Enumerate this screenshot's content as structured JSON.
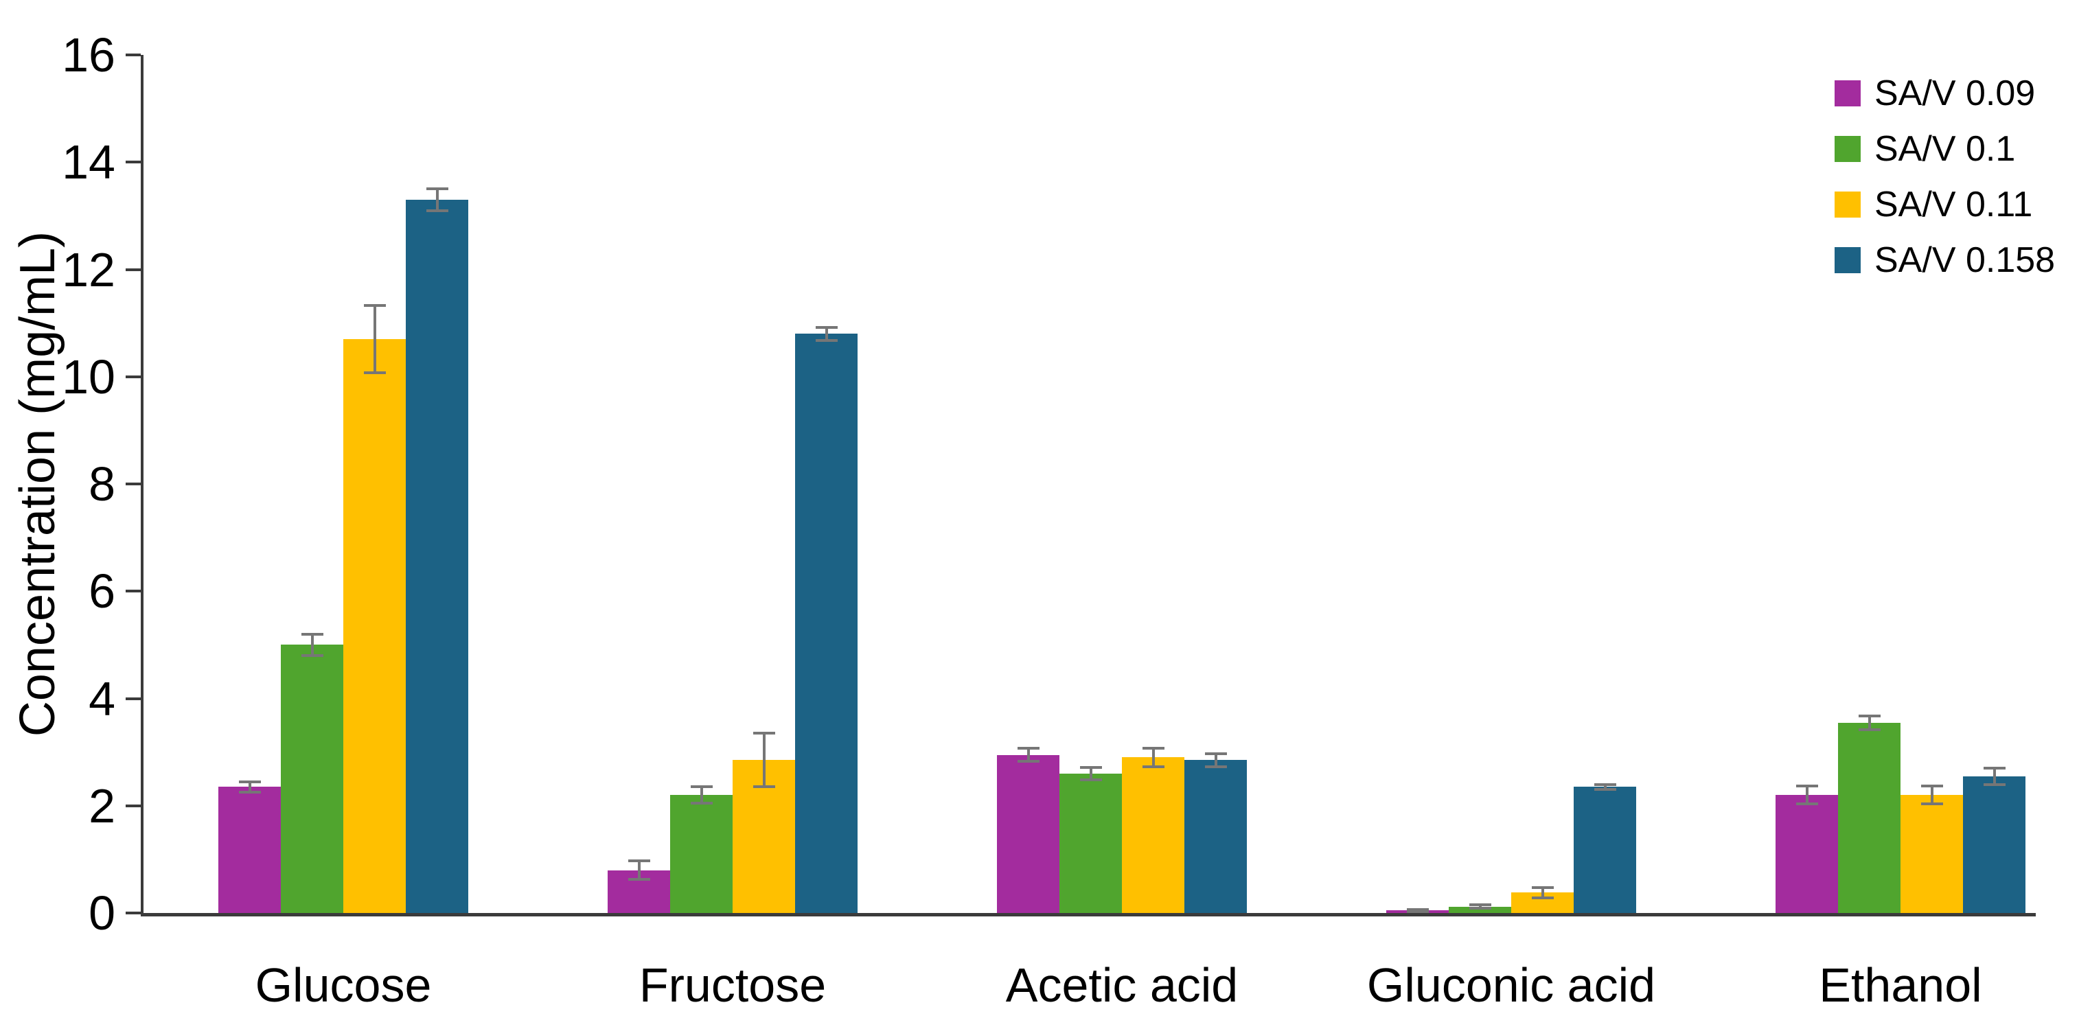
{
  "chart_data": {
    "type": "bar",
    "title": "",
    "xlabel": "",
    "ylabel": "Concentration (mg/mL)",
    "ylim": [
      0,
      16
    ],
    "yticks": [
      0,
      2,
      4,
      6,
      8,
      10,
      12,
      14,
      16
    ],
    "grid": false,
    "legend_position": "top-right",
    "categories": [
      "Glucose",
      "Fructose",
      "Acetic acid",
      "Gluconic acid",
      "Ethanol"
    ],
    "series": [
      {
        "name": "SA/V 0.09",
        "color": "#A32C9E",
        "values": [
          2.35,
          0.8,
          2.95,
          0.05,
          2.2
        ],
        "errors": [
          0.1,
          0.17,
          0.12,
          0.02,
          0.17
        ]
      },
      {
        "name": "SA/V 0.1",
        "color": "#50A52E",
        "values": [
          5.0,
          2.2,
          2.6,
          0.12,
          3.55
        ],
        "errors": [
          0.2,
          0.15,
          0.12,
          0.03,
          0.13
        ]
      },
      {
        "name": "SA/V 0.11",
        "color": "#FFC000",
        "values": [
          10.7,
          2.85,
          2.9,
          0.38,
          2.2
        ],
        "errors": [
          0.63,
          0.5,
          0.17,
          0.1,
          0.17
        ]
      },
      {
        "name": "SA/V 0.158",
        "color": "#1C6285",
        "values": [
          13.3,
          10.8,
          2.85,
          2.35,
          2.55
        ],
        "errors": [
          0.2,
          0.12,
          0.12,
          0.05,
          0.15
        ]
      }
    ],
    "error_bar_color": "#767676",
    "axis_color": "#3B3B3B"
  }
}
